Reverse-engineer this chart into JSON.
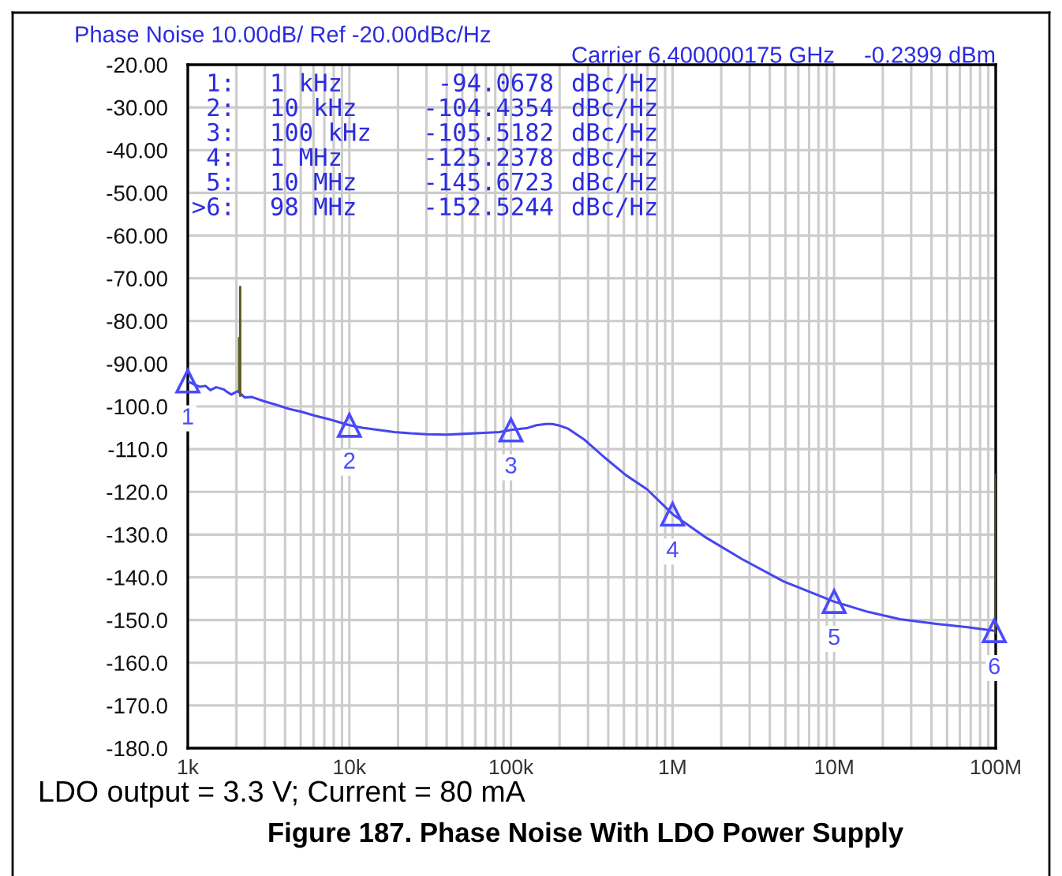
{
  "chart_data": {
    "type": "line",
    "title": "Figure 187. Phase Noise With LDO Power Supply",
    "subtitle": "LDO output = 3.3 V; Current = 80 mA",
    "log": "x",
    "grid": true,
    "xlim": [
      1000,
      100000000
    ],
    "ylim": [
      -180,
      -20
    ],
    "xticks": [
      {
        "value": 1000,
        "label": "1k"
      },
      {
        "value": 2000,
        "label": null
      },
      {
        "value": 3000,
        "label": null
      },
      {
        "value": 4000,
        "label": null
      },
      {
        "value": 5000,
        "label": null
      },
      {
        "value": 6000,
        "label": null
      },
      {
        "value": 7000,
        "label": null
      },
      {
        "value": 8000,
        "label": null
      },
      {
        "value": 9000,
        "label": null
      },
      {
        "value": 10000,
        "label": "10k"
      },
      {
        "value": 20000,
        "label": null
      },
      {
        "value": 30000,
        "label": null
      },
      {
        "value": 40000,
        "label": null
      },
      {
        "value": 50000,
        "label": null
      },
      {
        "value": 60000,
        "label": null
      },
      {
        "value": 70000,
        "label": null
      },
      {
        "value": 80000,
        "label": null
      },
      {
        "value": 90000,
        "label": null
      },
      {
        "value": 100000,
        "label": "100k"
      },
      {
        "value": 200000,
        "label": null
      },
      {
        "value": 300000,
        "label": null
      },
      {
        "value": 400000,
        "label": null
      },
      {
        "value": 500000,
        "label": null
      },
      {
        "value": 600000,
        "label": null
      },
      {
        "value": 700000,
        "label": null
      },
      {
        "value": 800000,
        "label": null
      },
      {
        "value": 900000,
        "label": null
      },
      {
        "value": 1000000,
        "label": "1M"
      },
      {
        "value": 2000000,
        "label": null
      },
      {
        "value": 3000000,
        "label": null
      },
      {
        "value": 4000000,
        "label": null
      },
      {
        "value": 5000000,
        "label": null
      },
      {
        "value": 6000000,
        "label": null
      },
      {
        "value": 7000000,
        "label": null
      },
      {
        "value": 8000000,
        "label": null
      },
      {
        "value": 9000000,
        "label": null
      },
      {
        "value": 10000000,
        "label": "10M"
      },
      {
        "value": 20000000,
        "label": null
      },
      {
        "value": 30000000,
        "label": null
      },
      {
        "value": 40000000,
        "label": null
      },
      {
        "value": 50000000,
        "label": null
      },
      {
        "value": 60000000,
        "label": null
      },
      {
        "value": 70000000,
        "label": null
      },
      {
        "value": 80000000,
        "label": null
      },
      {
        "value": 90000000,
        "label": null
      },
      {
        "value": 100000000,
        "label": "100M"
      }
    ],
    "yticks": [
      {
        "value": -20,
        "label": "-20.00"
      },
      {
        "value": -30,
        "label": "-30.00"
      },
      {
        "value": -40,
        "label": "-40.00"
      },
      {
        "value": -50,
        "label": "-50.00"
      },
      {
        "value": -60,
        "label": "-60.00"
      },
      {
        "value": -70,
        "label": "-70.00"
      },
      {
        "value": -80,
        "label": "-80.00"
      },
      {
        "value": -90,
        "label": "-90.00"
      },
      {
        "value": -100,
        "label": "-100.0"
      },
      {
        "value": -110,
        "label": "-110.0"
      },
      {
        "value": -120,
        "label": "-120.0"
      },
      {
        "value": -130,
        "label": "-130.0"
      },
      {
        "value": -140,
        "label": "-140.0"
      },
      {
        "value": -150,
        "label": "-150.0"
      },
      {
        "value": -160,
        "label": "-160.0"
      },
      {
        "value": -170,
        "label": "-170.0"
      },
      {
        "value": -180,
        "label": "-180.0"
      }
    ],
    "series": [
      {
        "color": "#4646f0",
        "x": [
          1000,
          1100,
          1189,
          1290,
          1380,
          1500,
          1665,
          1750,
          1864,
          1950,
          2040,
          2250,
          2500,
          2925,
          3500,
          4250,
          5000,
          6180,
          7500,
          10000,
          12000,
          15100,
          19000,
          23800,
          30000,
          40000,
          52000,
          68000,
          85000,
          100000,
          125000,
          144000,
          165000,
          180000,
          200000,
          226000,
          283000,
          381000,
          515000,
          695000,
          1000000,
          1580000,
          2680000,
          4880000,
          10000000,
          16200000,
          25400000,
          42800000,
          67000000,
          98000000
        ],
        "values": [
          -94.1,
          -94.9,
          -95.4,
          -95.2,
          -96.2,
          -95.5,
          -96.0,
          -96.6,
          -97.2,
          -96.8,
          -96.4,
          -97.9,
          -97.8,
          -98.7,
          -99.6,
          -100.6,
          -101.2,
          -102.2,
          -103.0,
          -104.4,
          -105.0,
          -105.5,
          -106.0,
          -106.3,
          -106.5,
          -106.6,
          -106.4,
          -106.2,
          -106.0,
          -105.5,
          -105.1,
          -104.4,
          -104.1,
          -104.1,
          -104.5,
          -105.2,
          -107.7,
          -112.0,
          -116.1,
          -119.4,
          -125.2,
          -130.5,
          -135.7,
          -141.0,
          -145.7,
          -148.1,
          -149.8,
          -150.9,
          -151.7,
          -152.5
        ]
      },
      {
        "type": "line",
        "color": "#5e5c24",
        "x": [
          2080,
          2080,
          2095,
          2110,
          2110,
          50000000,
          100000000,
          100000000
        ],
        "values": [
          -96.4,
          -84,
          null,
          -97.5,
          -72,
          null,
          -153,
          -116
        ]
      },
      {
        "type": "scatter",
        "color": "#4a4aff",
        "marker": "triangle",
        "x": [
          1000,
          10000,
          100000,
          1000000,
          10000000,
          98000000
        ],
        "values": [
          -94.0678,
          -104.4354,
          -105.5182,
          -125.2378,
          -145.6723,
          -152.5244
        ]
      }
    ],
    "annotations": [
      "Phase Noise 10.00dB/ Ref -20.00dBc/Hz",
      "Carrier 6.400000175 GHz",
      "-0.2399 dBm",
      "1:",
      "1 kHz",
      "-94.0678",
      "dBc/Hz",
      "2:",
      "10 kHz",
      "-104.4354",
      "dBc/Hz",
      "3:",
      "100 kHz",
      "-105.5182",
      "dBc/Hz",
      "4:",
      "1 MHz",
      "-125.2378",
      "dBc/Hz",
      "5:",
      "10 MHz",
      "-145.6723",
      "dBc/Hz",
      ">6:",
      "98 MHz",
      "-152.5244",
      "dBc/Hz",
      {
        "text": "1",
        "x": 1000,
        "y": -94.0678
      },
      {
        "text": "2",
        "x": 10000,
        "y": -104.4354
      },
      {
        "text": "3",
        "x": 100000,
        "y": -105.5182
      },
      {
        "text": "4",
        "x": 1000000,
        "y": -125.2378
      },
      {
        "text": "5",
        "x": 10000000,
        "y": -145.6723
      },
      {
        "text": "6",
        "x": 98000000,
        "y": -152.5244
      }
    ]
  }
}
